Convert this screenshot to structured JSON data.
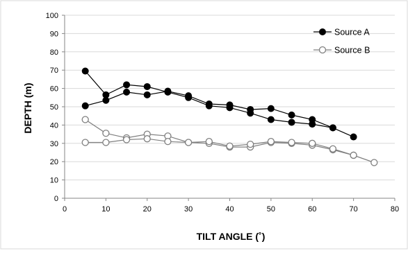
{
  "chart_data": {
    "type": "line",
    "title": "",
    "xlabel": "TILT ANGLE (˚)",
    "ylabel": "DEPTH (m)",
    "xlim": [
      0,
      80
    ],
    "ylim": [
      0,
      100
    ],
    "x_ticks": [
      0,
      10,
      20,
      30,
      40,
      50,
      60,
      70,
      80
    ],
    "y_ticks": [
      0,
      10,
      20,
      30,
      40,
      50,
      60,
      70,
      80,
      90,
      100
    ],
    "grid": "horizontal",
    "legend_position": "top-right",
    "series": [
      {
        "name": "Source A",
        "marker": "filled-circle",
        "color": "#000000",
        "points": [
          [
            5,
            69.5
          ],
          [
            10,
            56.5
          ],
          [
            15,
            62
          ],
          [
            20,
            61
          ],
          [
            25,
            58
          ],
          [
            30,
            55
          ],
          [
            35,
            50.5
          ],
          [
            40,
            49.5
          ],
          [
            45,
            46.5
          ],
          [
            50,
            43
          ],
          [
            55,
            41.5
          ],
          [
            60,
            40.5
          ],
          [
            65,
            38.5
          ],
          [
            70,
            33.5
          ],
          [
            65,
            38.5
          ],
          [
            60,
            43
          ],
          [
            55,
            45.5
          ],
          [
            50,
            49
          ],
          [
            45,
            48.5
          ],
          [
            40,
            51
          ],
          [
            35,
            51.5
          ],
          [
            30,
            56
          ],
          [
            25,
            58.5
          ],
          [
            20,
            56.5
          ],
          [
            15,
            58
          ],
          [
            10,
            53.5
          ],
          [
            5,
            50.5
          ]
        ]
      },
      {
        "name": "Source B",
        "marker": "open-circle",
        "color": "#7f7f7f",
        "points": [
          [
            5,
            43
          ],
          [
            10,
            35.5
          ],
          [
            15,
            33
          ],
          [
            20,
            35
          ],
          [
            25,
            34
          ],
          [
            30,
            30.5
          ],
          [
            35,
            30
          ],
          [
            40,
            28
          ],
          [
            45,
            28
          ],
          [
            50,
            30.5
          ],
          [
            55,
            30
          ],
          [
            60,
            29
          ],
          [
            65,
            26.5
          ],
          [
            70,
            23.5
          ],
          [
            75,
            19.5
          ],
          [
            70,
            23.5
          ],
          [
            65,
            27
          ],
          [
            60,
            30
          ],
          [
            55,
            30.5
          ],
          [
            50,
            31
          ],
          [
            45,
            29.5
          ],
          [
            40,
            28.5
          ],
          [
            35,
            31
          ],
          [
            30,
            30.5
          ],
          [
            25,
            31
          ],
          [
            20,
            32.5
          ],
          [
            15,
            32
          ],
          [
            10,
            30.5
          ],
          [
            5,
            30.5
          ]
        ]
      }
    ]
  }
}
